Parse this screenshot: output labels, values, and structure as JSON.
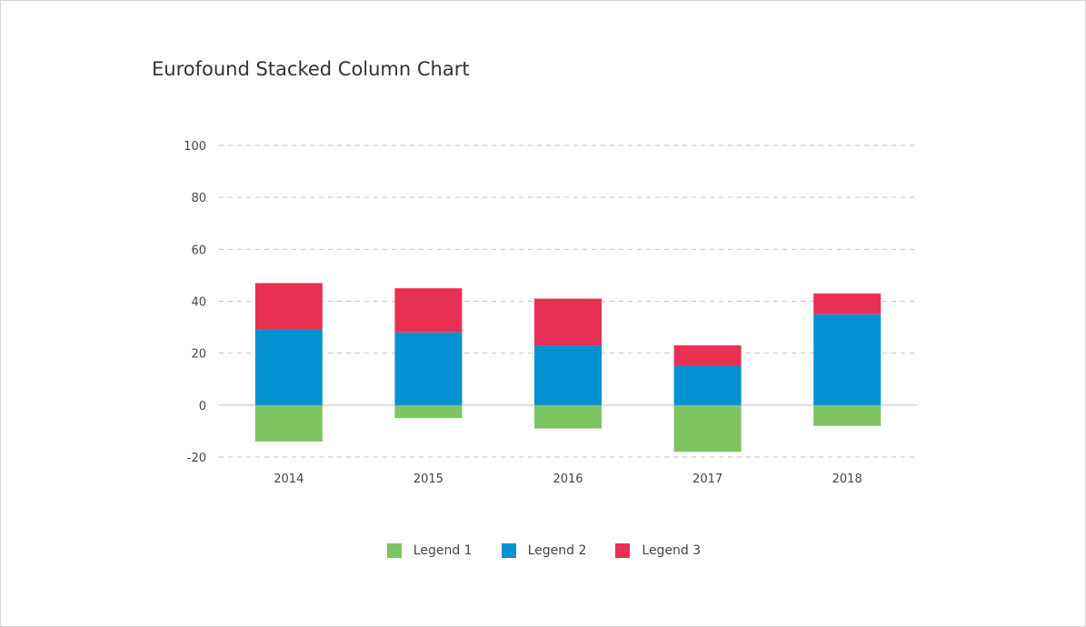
{
  "chart_data": {
    "type": "bar",
    "stacked": true,
    "title": "Eurofound Stacked Column Chart",
    "xlabel": "",
    "ylabel": "",
    "categories": [
      "2014",
      "2015",
      "2016",
      "2017",
      "2018"
    ],
    "ylim": [
      -20,
      100
    ],
    "yticks": [
      -20,
      0,
      20,
      40,
      60,
      80,
      100
    ],
    "grid": true,
    "legend_position": "bottom",
    "series": [
      {
        "name": "Legend 1",
        "color": "#7ec462",
        "values": [
          -14,
          -5,
          -9,
          -18,
          -8
        ]
      },
      {
        "name": "Legend 2",
        "color": "#0392d1",
        "values": [
          29,
          28,
          23,
          15,
          35
        ]
      },
      {
        "name": "Legend 3",
        "color": "#e83053",
        "values": [
          18,
          17,
          18,
          8,
          8
        ]
      }
    ]
  }
}
